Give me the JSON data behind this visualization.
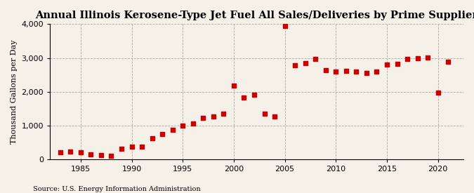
{
  "title": "Annual Illinois Kerosene-Type Jet Fuel All Sales/Deliveries by Prime Supplier",
  "ylabel": "Thousand Gallons per Day",
  "source": "Source: U.S. Energy Information Administration",
  "background_color": "#f5f0e8",
  "marker_color": "#cc0000",
  "grid_color": "#aaaaaa",
  "years": [
    1983,
    1984,
    1985,
    1986,
    1987,
    1988,
    1989,
    1990,
    1991,
    1992,
    1993,
    1994,
    1995,
    1996,
    1997,
    1998,
    1999,
    2000,
    2001,
    2002,
    2003,
    2004,
    2005,
    2006,
    2007,
    2008,
    2009,
    2010,
    2011,
    2012,
    2013,
    2014,
    2015,
    2016,
    2017,
    2018,
    2019,
    2020,
    2021
  ],
  "values": [
    205,
    225,
    205,
    155,
    120,
    105,
    320,
    385,
    370,
    630,
    760,
    870,
    1000,
    1060,
    1230,
    1270,
    1350,
    2180,
    1820,
    1920,
    1360,
    1260,
    3940,
    2780,
    2840,
    2960,
    2640,
    2590,
    2620,
    2590,
    2560,
    2590,
    2800,
    2820,
    2960,
    3000,
    3020,
    1980,
    2880
  ],
  "xlim": [
    1982,
    2022.5
  ],
  "ylim": [
    0,
    4000
  ],
  "yticks": [
    0,
    1000,
    2000,
    3000,
    4000
  ],
  "xticks": [
    1985,
    1990,
    1995,
    2000,
    2005,
    2010,
    2015,
    2020
  ],
  "title_fontsize": 10.5,
  "label_fontsize": 8,
  "tick_fontsize": 8,
  "source_fontsize": 7
}
